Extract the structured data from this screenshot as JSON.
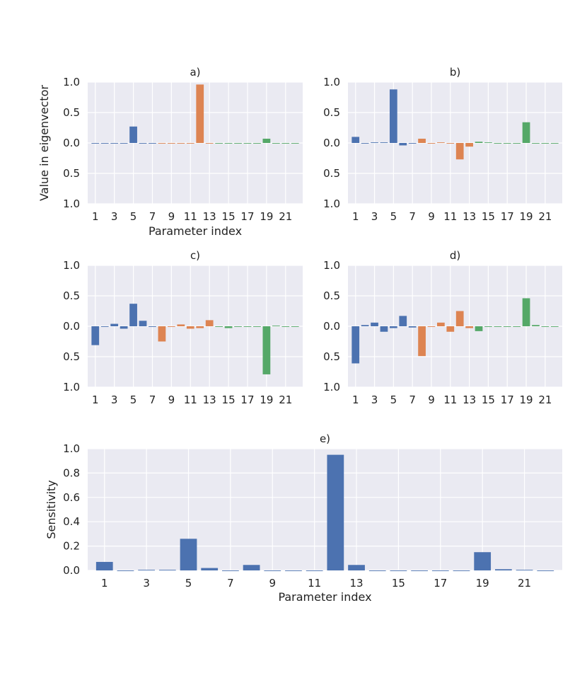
{
  "chart_data": [
    {
      "panel": "a)",
      "type": "bar",
      "title": "a)",
      "xlabel": "Parameter index",
      "ylabel": "Value in eigenvector",
      "ylim": [
        -1.0,
        1.0
      ],
      "yticks": [
        -1.0,
        -0.5,
        0.0,
        0.5,
        1.0
      ],
      "ytick_labels": [
        "1.0",
        "0.5",
        "0.0",
        "0.5",
        "1.0"
      ],
      "x": [
        1,
        2,
        3,
        4,
        5,
        6,
        7,
        8,
        9,
        10,
        11,
        12,
        13,
        14,
        15,
        16,
        17,
        18,
        19,
        20,
        21,
        22
      ],
      "xtick_labels": [
        "1",
        "3",
        "5",
        "7",
        "9",
        "11",
        "13",
        "15",
        "17",
        "19",
        "21"
      ],
      "values": [
        0.0,
        0.0,
        0.0,
        0.0,
        0.27,
        -0.01,
        0.0,
        0.0,
        0.0,
        0.0,
        0.0,
        0.96,
        -0.01,
        0.0,
        0.0,
        0.0,
        0.0,
        0.0,
        0.07,
        -0.01,
        0.0,
        0.0
      ],
      "groups": [
        "blue",
        "blue",
        "blue",
        "blue",
        "blue",
        "blue",
        "blue",
        "orange",
        "orange",
        "orange",
        "orange",
        "orange",
        "orange",
        "green",
        "green",
        "green",
        "green",
        "green",
        "green",
        "green",
        "green",
        "green"
      ]
    },
    {
      "panel": "b)",
      "type": "bar",
      "title": "b)",
      "xlabel": "",
      "ylabel": "",
      "ylim": [
        -1.0,
        1.0
      ],
      "yticks": [
        -1.0,
        -0.5,
        0.0,
        0.5,
        1.0
      ],
      "ytick_labels": [
        "1.0",
        "0.5",
        "0.0",
        "0.5",
        "1.0"
      ],
      "x": [
        1,
        2,
        3,
        4,
        5,
        6,
        7,
        8,
        9,
        10,
        11,
        12,
        13,
        14,
        15,
        16,
        17,
        18,
        19,
        20,
        21,
        22
      ],
      "xtick_labels": [
        "1",
        "3",
        "5",
        "7",
        "9",
        "11",
        "13",
        "15",
        "17",
        "19",
        "21"
      ],
      "values": [
        0.1,
        0.0,
        0.01,
        0.01,
        0.88,
        -0.04,
        0.0,
        0.07,
        0.0,
        0.01,
        0.0,
        -0.27,
        -0.06,
        0.02,
        0.01,
        0.0,
        0.0,
        0.0,
        0.34,
        -0.01,
        0.0,
        0.0
      ],
      "groups": [
        "blue",
        "blue",
        "blue",
        "blue",
        "blue",
        "blue",
        "blue",
        "orange",
        "orange",
        "orange",
        "orange",
        "orange",
        "orange",
        "green",
        "green",
        "green",
        "green",
        "green",
        "green",
        "green",
        "green",
        "green"
      ]
    },
    {
      "panel": "c)",
      "type": "bar",
      "title": "c)",
      "xlabel": "",
      "ylabel": "",
      "ylim": [
        -1.0,
        1.0
      ],
      "yticks": [
        -1.0,
        -0.5,
        0.0,
        0.5,
        1.0
      ],
      "ytick_labels": [
        "1.0",
        "0.5",
        "0.0",
        "0.5",
        "1.0"
      ],
      "x": [
        1,
        2,
        3,
        4,
        5,
        6,
        7,
        8,
        9,
        10,
        11,
        12,
        13,
        14,
        15,
        16,
        17,
        18,
        19,
        20,
        21,
        22
      ],
      "xtick_labels": [
        "1",
        "3",
        "5",
        "7",
        "9",
        "11",
        "13",
        "15",
        "17",
        "19",
        "21"
      ],
      "values": [
        -0.31,
        0.0,
        0.04,
        -0.04,
        0.37,
        0.09,
        0.0,
        -0.25,
        0.0,
        0.03,
        -0.04,
        -0.03,
        0.1,
        -0.01,
        -0.03,
        0.0,
        0.0,
        0.0,
        -0.79,
        0.01,
        0.0,
        0.0
      ],
      "groups": [
        "blue",
        "blue",
        "blue",
        "blue",
        "blue",
        "blue",
        "blue",
        "orange",
        "orange",
        "orange",
        "orange",
        "orange",
        "orange",
        "green",
        "green",
        "green",
        "green",
        "green",
        "green",
        "green",
        "green",
        "green"
      ]
    },
    {
      "panel": "d)",
      "type": "bar",
      "title": "d)",
      "xlabel": "",
      "ylabel": "",
      "ylim": [
        -1.0,
        1.0
      ],
      "yticks": [
        -1.0,
        -0.5,
        0.0,
        0.5,
        1.0
      ],
      "ytick_labels": [
        "1.0",
        "0.5",
        "0.0",
        "0.5",
        "1.0"
      ],
      "x": [
        1,
        2,
        3,
        4,
        5,
        6,
        7,
        8,
        9,
        10,
        11,
        12,
        13,
        14,
        15,
        16,
        17,
        18,
        19,
        20,
        21,
        22
      ],
      "xtick_labels": [
        "1",
        "3",
        "5",
        "7",
        "9",
        "11",
        "13",
        "15",
        "17",
        "19",
        "21"
      ],
      "values": [
        -0.61,
        0.02,
        0.06,
        -0.09,
        -0.03,
        0.17,
        -0.02,
        -0.49,
        0.0,
        0.06,
        -0.09,
        0.25,
        -0.03,
        -0.08,
        0.0,
        0.0,
        0.0,
        -0.01,
        0.46,
        0.02,
        0.0,
        0.0
      ],
      "groups": [
        "blue",
        "blue",
        "blue",
        "blue",
        "blue",
        "blue",
        "blue",
        "orange",
        "orange",
        "orange",
        "orange",
        "orange",
        "orange",
        "green",
        "green",
        "green",
        "green",
        "green",
        "green",
        "green",
        "green",
        "green"
      ]
    },
    {
      "panel": "e)",
      "type": "bar",
      "title": "e)",
      "xlabel": "Parameter index",
      "ylabel": "Sensitivity",
      "ylim": [
        0.0,
        1.0
      ],
      "yticks": [
        0.0,
        0.2,
        0.4,
        0.6,
        0.8,
        1.0
      ],
      "ytick_labels": [
        "0.0",
        "0.2",
        "0.4",
        "0.6",
        "0.8",
        "1.0"
      ],
      "x": [
        1,
        2,
        3,
        4,
        5,
        6,
        7,
        8,
        9,
        10,
        11,
        12,
        13,
        14,
        15,
        16,
        17,
        18,
        19,
        20,
        21,
        22
      ],
      "xtick_labels": [
        "1",
        "3",
        "5",
        "7",
        "9",
        "11",
        "13",
        "15",
        "17",
        "19",
        "21"
      ],
      "values": [
        0.07,
        0.0,
        0.005,
        0.005,
        0.26,
        0.02,
        0.0,
        0.045,
        0.0,
        0.0,
        0.0,
        0.95,
        0.045,
        0.0,
        0.0,
        0.0,
        0.0,
        0.0,
        0.15,
        0.01,
        0.005,
        0.0
      ],
      "groups": [
        "blue",
        "blue",
        "blue",
        "blue",
        "blue",
        "blue",
        "blue",
        "blue",
        "blue",
        "blue",
        "blue",
        "blue",
        "blue",
        "blue",
        "blue",
        "blue",
        "blue",
        "blue",
        "blue",
        "blue",
        "blue",
        "blue"
      ]
    }
  ],
  "colors": {
    "blue": "#4c72b0",
    "orange": "#dd8452",
    "green": "#55a868"
  }
}
